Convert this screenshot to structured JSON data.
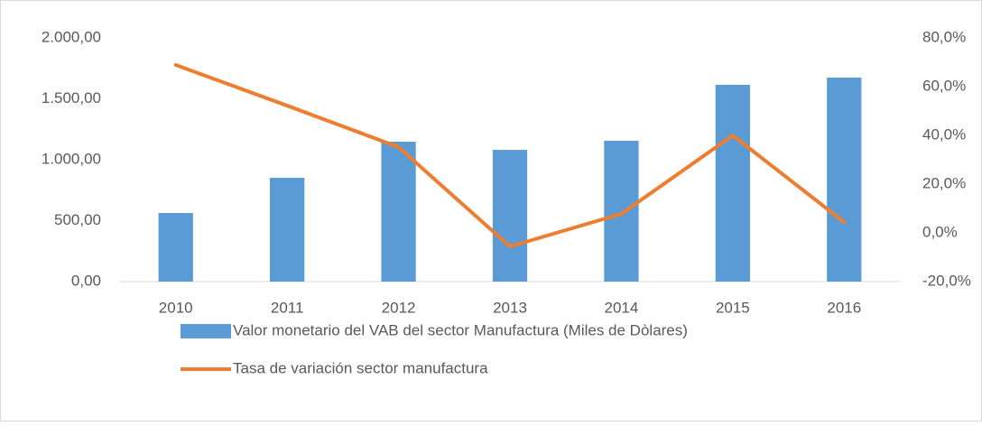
{
  "chart_data": {
    "type": "bar-line",
    "categories": [
      "2010",
      "2011",
      "2012",
      "2013",
      "2014",
      "2015",
      "2016"
    ],
    "series": [
      {
        "name": "Valor monetario del VAB del sector Manufactura  (Miles de Dòlares)",
        "color": "#5b9bd5",
        "type": "bar",
        "values": [
          563,
          852,
          1148,
          1081,
          1156,
          1615,
          1674
        ]
      },
      {
        "name": "Tasa de variación  sector manufactura",
        "color": "#ed7d31",
        "type": "line",
        "axis": "y2",
        "values": [
          68.9,
          52.2,
          35.2,
          -5.6,
          7.8,
          40.0,
          4.4
        ]
      }
    ],
    "ylim": [
      0,
      2000
    ],
    "yticks": [
      {
        "value": 0,
        "label": "0,00"
      },
      {
        "value": 500,
        "label": "500,00"
      },
      {
        "value": 1000,
        "label": "1.000,00"
      },
      {
        "value": 1500,
        "label": "1.500,00"
      },
      {
        "value": 2000,
        "label": "2.000,00"
      }
    ],
    "y2lim": [
      -20,
      80
    ],
    "y2ticks": [
      {
        "value": -20,
        "label": "-20,0%"
      },
      {
        "value": 0,
        "label": "0,0%"
      },
      {
        "value": 20,
        "label": "20,0%"
      },
      {
        "value": 40,
        "label": "40,0%"
      },
      {
        "value": 60,
        "label": "60,0%"
      },
      {
        "value": 80,
        "label": "80,0%"
      }
    ],
    "grid": false,
    "legend": "bottom"
  }
}
